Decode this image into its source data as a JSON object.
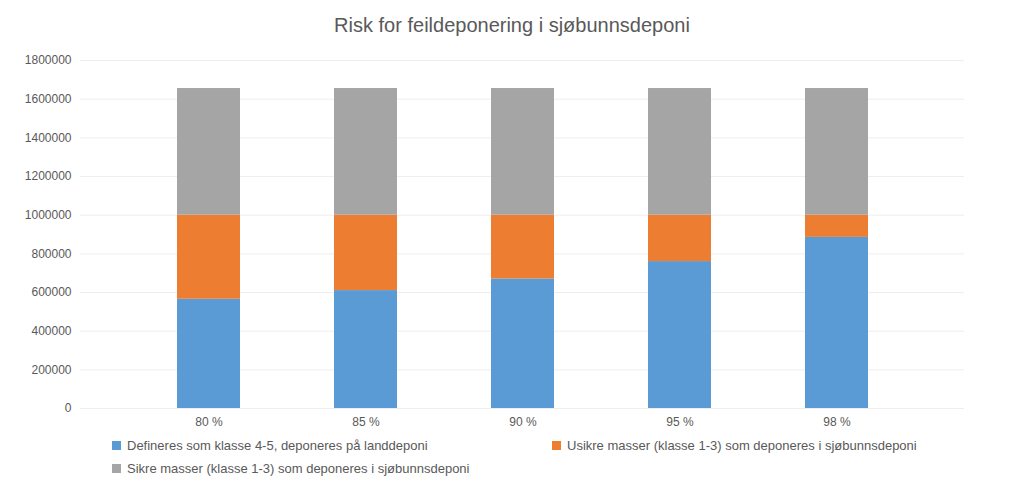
{
  "chart_data": {
    "type": "bar",
    "stacked": true,
    "title": "Risk for feildeponering i sjøbunnsdeponi",
    "categories": [
      "80 %",
      "85 %",
      "90 %",
      "95 %",
      "98 %"
    ],
    "series": [
      {
        "name": "Defineres som klasse 4-5, deponeres på landdeponi",
        "color": "#5b9bd5",
        "values": [
          565000,
          610000,
          670000,
          760000,
          885000
        ]
      },
      {
        "name": "Usikre masser (klasse 1-3) som deponeres i sjøbunnsdeponi",
        "color": "#ed7d31",
        "values": [
          435000,
          390000,
          330000,
          240000,
          115000
        ]
      },
      {
        "name": "Sikre masser (klasse 1-3) som deponeres i sjøbunnsdeponi",
        "color": "#a5a5a5",
        "values": [
          655000,
          655000,
          655000,
          655000,
          655000
        ]
      }
    ],
    "ylim": [
      0,
      1800000
    ],
    "yticks": [
      0,
      200000,
      400000,
      600000,
      800000,
      1000000,
      1200000,
      1400000,
      1600000,
      1800000
    ],
    "grid": true,
    "legend": "bottom"
  }
}
